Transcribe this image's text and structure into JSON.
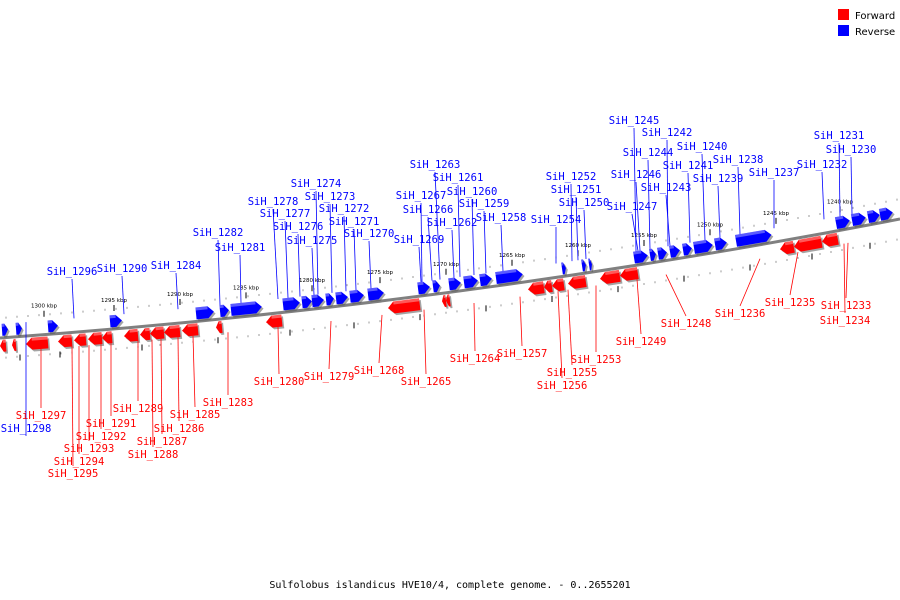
{
  "colors": {
    "forward": "#ff0000",
    "reverse": "#0000ff",
    "backbone": "#808080"
  },
  "legend": [
    {
      "key": "forward",
      "label": "Forward"
    },
    {
      "key": "reverse",
      "label": "Reverse"
    }
  ],
  "caption": "Sulfolobus islandicus HVE10/4, complete genome. - 0..2655201",
  "scale_ticks": [
    "1300 kbp",
    "1295 kbp",
    "1290 kbp",
    "1285 kbp",
    "1280 kbp",
    "1275 kbp",
    "1270 kbp",
    "1265 kbp",
    "1260 kbp",
    "1255 kbp",
    "1250 kbp",
    "1245 kbp",
    "1240 kbp"
  ],
  "genes": {
    "reverse": [
      "SiH_1231",
      "SiH_1230",
      "SiH_1232",
      "SiH_1245",
      "SiH_1242",
      "SiH_1240",
      "SiH_1244",
      "SiH_1241",
      "SiH_1238",
      "SiH_1246",
      "SiH_1243",
      "SiH_1239",
      "SiH_1237",
      "SiH_1247",
      "SiH_1252",
      "SiH_1251",
      "SiH_1250",
      "SiH_1254",
      "SiH_1263",
      "SiH_1261",
      "SiH_1267",
      "SiH_1260",
      "SiH_1266",
      "SiH_1259",
      "SiH_1262",
      "SiH_1258",
      "SiH_1269",
      "SiH_1274",
      "SiH_1273",
      "SiH_1278",
      "SiH_1272",
      "SiH_1277",
      "SiH_1271",
      "SiH_1276",
      "SiH_1270",
      "SiH_1275",
      "SiH_1282",
      "SiH_1281",
      "SiH_1284",
      "SiH_1290",
      "SiH_1296",
      "SiH_1298"
    ],
    "forward": [
      "SiH_1236",
      "SiH_1235",
      "SiH_1233",
      "SiH_1234",
      "SiH_1248",
      "SiH_1249",
      "SiH_1257",
      "SiH_1253",
      "SiH_1255",
      "SiH_1256",
      "SiH_1268",
      "SiH_1264",
      "SiH_1265",
      "SiH_1280",
      "SiH_1279",
      "SiH_1283",
      "SiH_1289",
      "SiH_1285",
      "SiH_1291",
      "SiH_1286",
      "SiH_1292",
      "SiH_1287",
      "SiH_1293",
      "SiH_1288",
      "SiH_1294",
      "SiH_1295",
      "SiH_1297"
    ]
  }
}
